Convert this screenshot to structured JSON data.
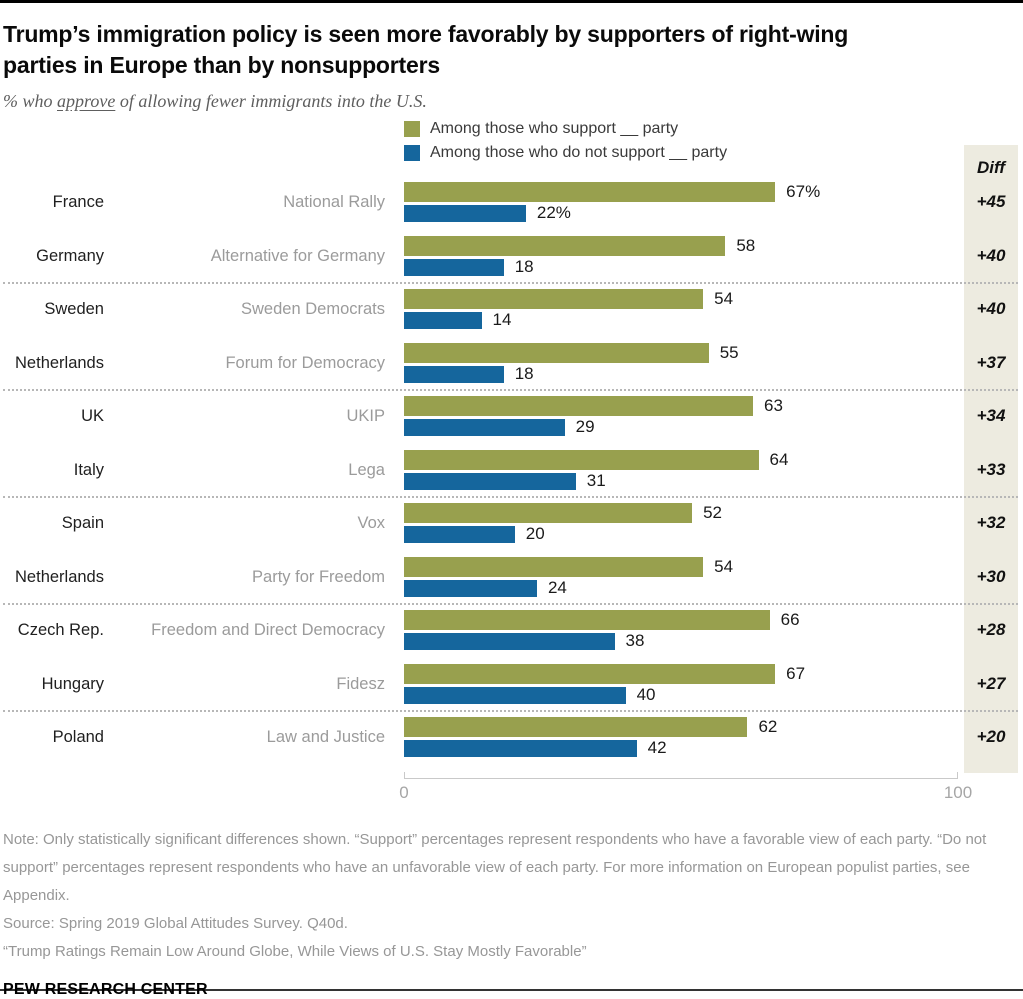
{
  "header": {
    "title_line1": "Trump’s immigration policy is seen more favorably by supporters of right-wing",
    "title_line2": "parties in Europe than by nonsupporters",
    "subtitle_prefix": "% who ",
    "subtitle_underlined": "approve",
    "subtitle_suffix": " of allowing fewer immigrants into the U.S."
  },
  "legend": {
    "support": {
      "label": "Among those who support __ party",
      "color": "#98a04e"
    },
    "oppose": {
      "label": "Among those who do not support __ party",
      "color": "#15669d"
    }
  },
  "diff_header": "Diff",
  "chart_data": {
    "type": "bar",
    "orientation": "horizontal",
    "xlim": [
      0,
      100
    ],
    "xticks": {
      "min": "0",
      "max": "100"
    },
    "grid": "off",
    "legend_position": "top",
    "colors": {
      "support": "#98a04e",
      "oppose": "#15669d",
      "diff_panel": "#edebe0"
    },
    "rows": [
      {
        "country": "France",
        "party": "National Rally",
        "support": 67,
        "oppose": 22,
        "support_label": "67%",
        "oppose_label": "22%",
        "diff": "+45"
      },
      {
        "country": "Germany",
        "party": "Alternative for Germany",
        "support": 58,
        "oppose": 18,
        "support_label": "58",
        "oppose_label": "18",
        "diff": "+40"
      },
      {
        "country": "Sweden",
        "party": "Sweden Democrats",
        "support": 54,
        "oppose": 14,
        "support_label": "54",
        "oppose_label": "14",
        "diff": "+40"
      },
      {
        "country": "Netherlands",
        "party": "Forum for Democracy",
        "support": 55,
        "oppose": 18,
        "support_label": "55",
        "oppose_label": "18",
        "diff": "+37"
      },
      {
        "country": "UK",
        "party": "UKIP",
        "support": 63,
        "oppose": 29,
        "support_label": "63",
        "oppose_label": "29",
        "diff": "+34"
      },
      {
        "country": "Italy",
        "party": "Lega",
        "support": 64,
        "oppose": 31,
        "support_label": "64",
        "oppose_label": "31",
        "diff": "+33"
      },
      {
        "country": "Spain",
        "party": "Vox",
        "support": 52,
        "oppose": 20,
        "support_label": "52",
        "oppose_label": "20",
        "diff": "+32"
      },
      {
        "country": "Netherlands",
        "party": "Party for Freedom",
        "support": 54,
        "oppose": 24,
        "support_label": "54",
        "oppose_label": "24",
        "diff": "+30"
      },
      {
        "country": "Czech Rep.",
        "party": "Freedom and Direct Democracy",
        "support": 66,
        "oppose": 38,
        "support_label": "66",
        "oppose_label": "38",
        "diff": "+28"
      },
      {
        "country": "Hungary",
        "party": "Fidesz",
        "support": 67,
        "oppose": 40,
        "support_label": "67",
        "oppose_label": "40",
        "diff": "+27"
      },
      {
        "country": "Poland",
        "party": "Law and Justice",
        "support": 62,
        "oppose": 42,
        "support_label": "62",
        "oppose_label": "42",
        "diff": "+20"
      }
    ],
    "separators_after_rows": [
      1,
      3,
      5,
      7,
      9
    ]
  },
  "notes": {
    "note": "Note: Only statistically significant differences shown. “Support” percentages represent respondents who have a favorable view of each party. “Do not support” percentages represent respondents who have an unfavorable view of each party. For more information on European populist parties, see Appendix.",
    "source": "Source: Spring 2019 Global Attitudes Survey. Q40d.",
    "report": "“Trump Ratings Remain Low Around Globe, While Views of U.S. Stay Mostly Favorable”"
  },
  "footer": {
    "brand": "PEW RESEARCH CENTER"
  }
}
